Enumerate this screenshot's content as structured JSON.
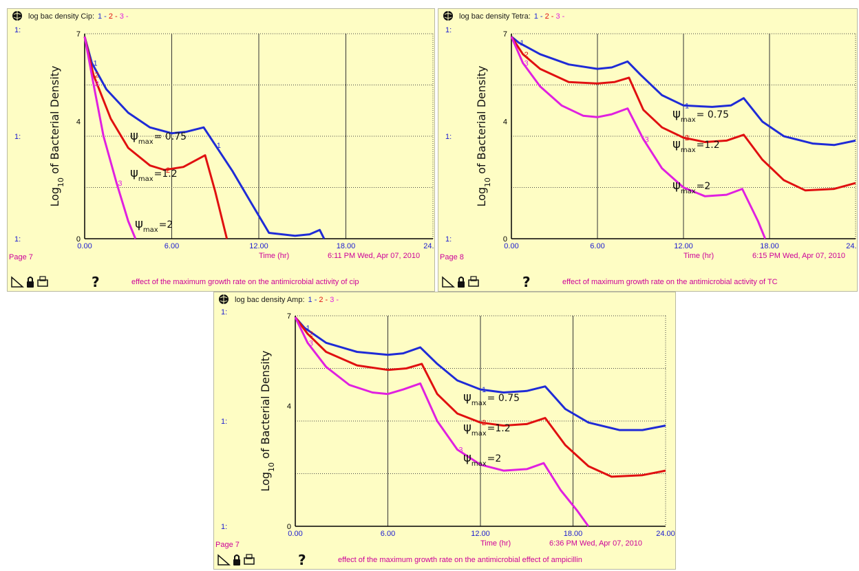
{
  "colors": {
    "bg": "#fefdc4",
    "s1": "#1f2bd6",
    "s2": "#e01010",
    "s3": "#e020e0",
    "grid": "#555555",
    "pink": "#cc0099",
    "blue": "#1a1ad0"
  },
  "icons": [
    "globe-icon",
    "pointer-icon",
    "lock-icon",
    "printer-icon",
    "help-icon"
  ],
  "chart_data": [
    {
      "type": "line",
      "header_title": "log bac density Cip:",
      "series_marks": [
        "1 -",
        "2 -",
        "3 -"
      ],
      "ylabel_main": "Log",
      "ylabel_sub": "10",
      "ylabel_rest": " of Bacterial Density",
      "xlabel": "Time (hr)",
      "xlim": [
        0,
        24
      ],
      "ylim": [
        0,
        7
      ],
      "x_ticks": [
        "0.00",
        "6.00",
        "12.00",
        "18.00",
        "24.00"
      ],
      "y_ticks": [
        "0",
        "4",
        "7"
      ],
      "y_axis_marks": [
        "1:",
        "1:",
        "1:",
        "1:"
      ],
      "page_label": "Page 7",
      "timestamp": "6:11 PM  Wed, Apr 07, 2010",
      "caption": "effect of the maximum growth rate on the antimicrobial activity of cip",
      "help": "?",
      "annotations": [
        {
          "sym": "ψ",
          "sub": "max",
          "val": "= 0.75"
        },
        {
          "sym": "ψ",
          "sub": "max",
          "val": "=1.2"
        },
        {
          "sym": "ψ",
          "sub": "max",
          "val": "=2"
        }
      ],
      "series": [
        {
          "name": "1",
          "marker": "1",
          "points": [
            [
              0,
              6.9
            ],
            [
              0.5,
              6.0
            ],
            [
              1.5,
              5.1
            ],
            [
              3,
              4.3
            ],
            [
              4.5,
              3.8
            ],
            [
              6,
              3.6
            ],
            [
              7,
              3.65
            ],
            [
              8.2,
              3.8
            ],
            [
              9,
              3.2
            ],
            [
              10.2,
              2.3
            ],
            [
              11.5,
              1.2
            ],
            [
              12.7,
              0.2
            ],
            [
              14.5,
              0.1
            ],
            [
              15.5,
              0.15
            ],
            [
              16.2,
              0.3
            ],
            [
              16.5,
              0
            ]
          ]
        },
        {
          "name": "2",
          "marker": "2",
          "points": [
            [
              0,
              6.9
            ],
            [
              0.6,
              5.6
            ],
            [
              1.8,
              4.1
            ],
            [
              3,
              3.1
            ],
            [
              4.5,
              2.5
            ],
            [
              5.5,
              2.35
            ],
            [
              6.8,
              2.45
            ],
            [
              8.3,
              2.85
            ],
            [
              9,
              1.6
            ],
            [
              9.8,
              0
            ]
          ]
        },
        {
          "name": "3",
          "marker": "3",
          "points": [
            [
              0,
              6.9
            ],
            [
              0.6,
              5.3
            ],
            [
              1.3,
              3.5
            ],
            [
              2.2,
              1.9
            ],
            [
              3,
              0.6
            ],
            [
              3.5,
              0
            ]
          ]
        }
      ]
    },
    {
      "type": "line",
      "header_title": "log bac density Tetra:",
      "series_marks": [
        "1 -",
        "2 -",
        "3 -"
      ],
      "ylabel_main": "Log",
      "ylabel_sub": "10",
      "ylabel_rest": " of Bacterial Density",
      "xlabel": "Time (hr)",
      "xlim": [
        0,
        24
      ],
      "ylim": [
        0,
        7
      ],
      "x_ticks": [
        "0.00",
        "6.00",
        "12.00",
        "18.00",
        "24.00"
      ],
      "y_ticks": [
        "0",
        "4",
        "7"
      ],
      "y_axis_marks": [
        "1:",
        "1:",
        "1:",
        "1:"
      ],
      "page_label": "Page 8",
      "timestamp": "6:15 PM  Wed, Apr 07, 2010",
      "caption": "effect of maximum growth rate on the antimicrobial activity of TC",
      "help": "?",
      "annotations": [
        {
          "sym": "ψ",
          "sub": "max",
          "val": "= 0.75"
        },
        {
          "sym": "ψ",
          "sub": "max",
          "val": "=1.2"
        },
        {
          "sym": "ψ",
          "sub": "max",
          "val": "=2"
        }
      ],
      "series": [
        {
          "name": "1",
          "marker": "1",
          "points": [
            [
              0,
              6.9
            ],
            [
              0.5,
              6.7
            ],
            [
              2,
              6.3
            ],
            [
              4,
              5.95
            ],
            [
              6,
              5.8
            ],
            [
              7,
              5.85
            ],
            [
              8.1,
              6.05
            ],
            [
              9,
              5.6
            ],
            [
              10.5,
              4.9
            ],
            [
              12,
              4.55
            ],
            [
              14,
              4.5
            ],
            [
              15.3,
              4.55
            ],
            [
              16.2,
              4.8
            ],
            [
              17.5,
              4.0
            ],
            [
              19,
              3.5
            ],
            [
              21,
              3.25
            ],
            [
              22.5,
              3.2
            ],
            [
              24,
              3.35
            ]
          ]
        },
        {
          "name": "2",
          "marker": "2",
          "points": [
            [
              0,
              6.9
            ],
            [
              0.8,
              6.3
            ],
            [
              2,
              5.8
            ],
            [
              4,
              5.35
            ],
            [
              6,
              5.3
            ],
            [
              7.2,
              5.35
            ],
            [
              8.2,
              5.5
            ],
            [
              9.2,
              4.4
            ],
            [
              10.5,
              3.8
            ],
            [
              12,
              3.45
            ],
            [
              13.5,
              3.3
            ],
            [
              15,
              3.35
            ],
            [
              16.2,
              3.55
            ],
            [
              17.5,
              2.7
            ],
            [
              19,
              2.0
            ],
            [
              20.5,
              1.65
            ],
            [
              22.5,
              1.7
            ],
            [
              24,
              1.9
            ]
          ]
        },
        {
          "name": "3",
          "marker": "3",
          "points": [
            [
              0,
              6.9
            ],
            [
              0.8,
              6.0
            ],
            [
              2,
              5.2
            ],
            [
              3.5,
              4.55
            ],
            [
              5,
              4.2
            ],
            [
              6,
              4.15
            ],
            [
              7,
              4.25
            ],
            [
              8.1,
              4.45
            ],
            [
              9.2,
              3.4
            ],
            [
              10.5,
              2.4
            ],
            [
              12,
              1.75
            ],
            [
              13.5,
              1.45
            ],
            [
              15,
              1.5
            ],
            [
              16.1,
              1.7
            ],
            [
              17.2,
              0.6
            ],
            [
              17.7,
              0
            ]
          ]
        }
      ]
    },
    {
      "type": "line",
      "header_title": "log bac density Amp:",
      "series_marks": [
        "1 -",
        "2 -",
        "3 -"
      ],
      "ylabel_main": "Log",
      "ylabel_sub": "10",
      "ylabel_rest": " of Bacterial Density",
      "xlabel": "Time (hr)",
      "xlim": [
        0,
        24
      ],
      "ylim": [
        0,
        7
      ],
      "x_ticks": [
        "0.00",
        "6.00",
        "12.00",
        "18.00",
        "24.00"
      ],
      "y_ticks": [
        "0",
        "4",
        "7"
      ],
      "y_axis_marks": [
        "1:",
        "1:",
        "1:",
        "1:"
      ],
      "page_label": "Page 7",
      "timestamp": "6:36 PM  Wed, Apr 07, 2010",
      "caption": "effect of the maximum growth rate on the antimicrobial effect of ampicillin",
      "help": "?",
      "annotations": [
        {
          "sym": "ψ",
          "sub": "max",
          "val": "= 0.75"
        },
        {
          "sym": "ψ",
          "sub": "max",
          "val": "=1.2"
        },
        {
          "sym": "ψ",
          "sub": "max",
          "val": "=2"
        }
      ],
      "series": [
        {
          "name": "1",
          "marker": "1",
          "points": [
            [
              0,
              6.95
            ],
            [
              0.6,
              6.6
            ],
            [
              2,
              6.1
            ],
            [
              4,
              5.8
            ],
            [
              6,
              5.7
            ],
            [
              7,
              5.75
            ],
            [
              8.1,
              5.95
            ],
            [
              9.2,
              5.4
            ],
            [
              10.5,
              4.85
            ],
            [
              12,
              4.55
            ],
            [
              13.5,
              4.45
            ],
            [
              15,
              4.5
            ],
            [
              16.2,
              4.65
            ],
            [
              17.5,
              3.9
            ],
            [
              19,
              3.45
            ],
            [
              21,
              3.2
            ],
            [
              22.5,
              3.2
            ],
            [
              24,
              3.35
            ]
          ]
        },
        {
          "name": "2",
          "marker": "2",
          "points": [
            [
              0,
              6.95
            ],
            [
              0.8,
              6.4
            ],
            [
              2,
              5.8
            ],
            [
              4,
              5.35
            ],
            [
              6,
              5.2
            ],
            [
              7.2,
              5.25
            ],
            [
              8.2,
              5.4
            ],
            [
              9.2,
              4.4
            ],
            [
              10.5,
              3.75
            ],
            [
              12,
              3.45
            ],
            [
              13.5,
              3.35
            ],
            [
              15,
              3.4
            ],
            [
              16.2,
              3.6
            ],
            [
              17.5,
              2.7
            ],
            [
              19,
              2.0
            ],
            [
              20.5,
              1.65
            ],
            [
              22.5,
              1.7
            ],
            [
              24,
              1.85
            ]
          ]
        },
        {
          "name": "3",
          "marker": "3",
          "points": [
            [
              0,
              6.95
            ],
            [
              0.8,
              6.1
            ],
            [
              2,
              5.3
            ],
            [
              3.5,
              4.7
            ],
            [
              5,
              4.45
            ],
            [
              6,
              4.4
            ],
            [
              7,
              4.55
            ],
            [
              8.1,
              4.75
            ],
            [
              9.2,
              3.5
            ],
            [
              10.5,
              2.55
            ],
            [
              12,
              2.05
            ],
            [
              13.5,
              1.85
            ],
            [
              15,
              1.9
            ],
            [
              16.1,
              2.1
            ],
            [
              17.2,
              1.2
            ],
            [
              18.3,
              0.5
            ],
            [
              19,
              0
            ]
          ]
        }
      ]
    }
  ]
}
